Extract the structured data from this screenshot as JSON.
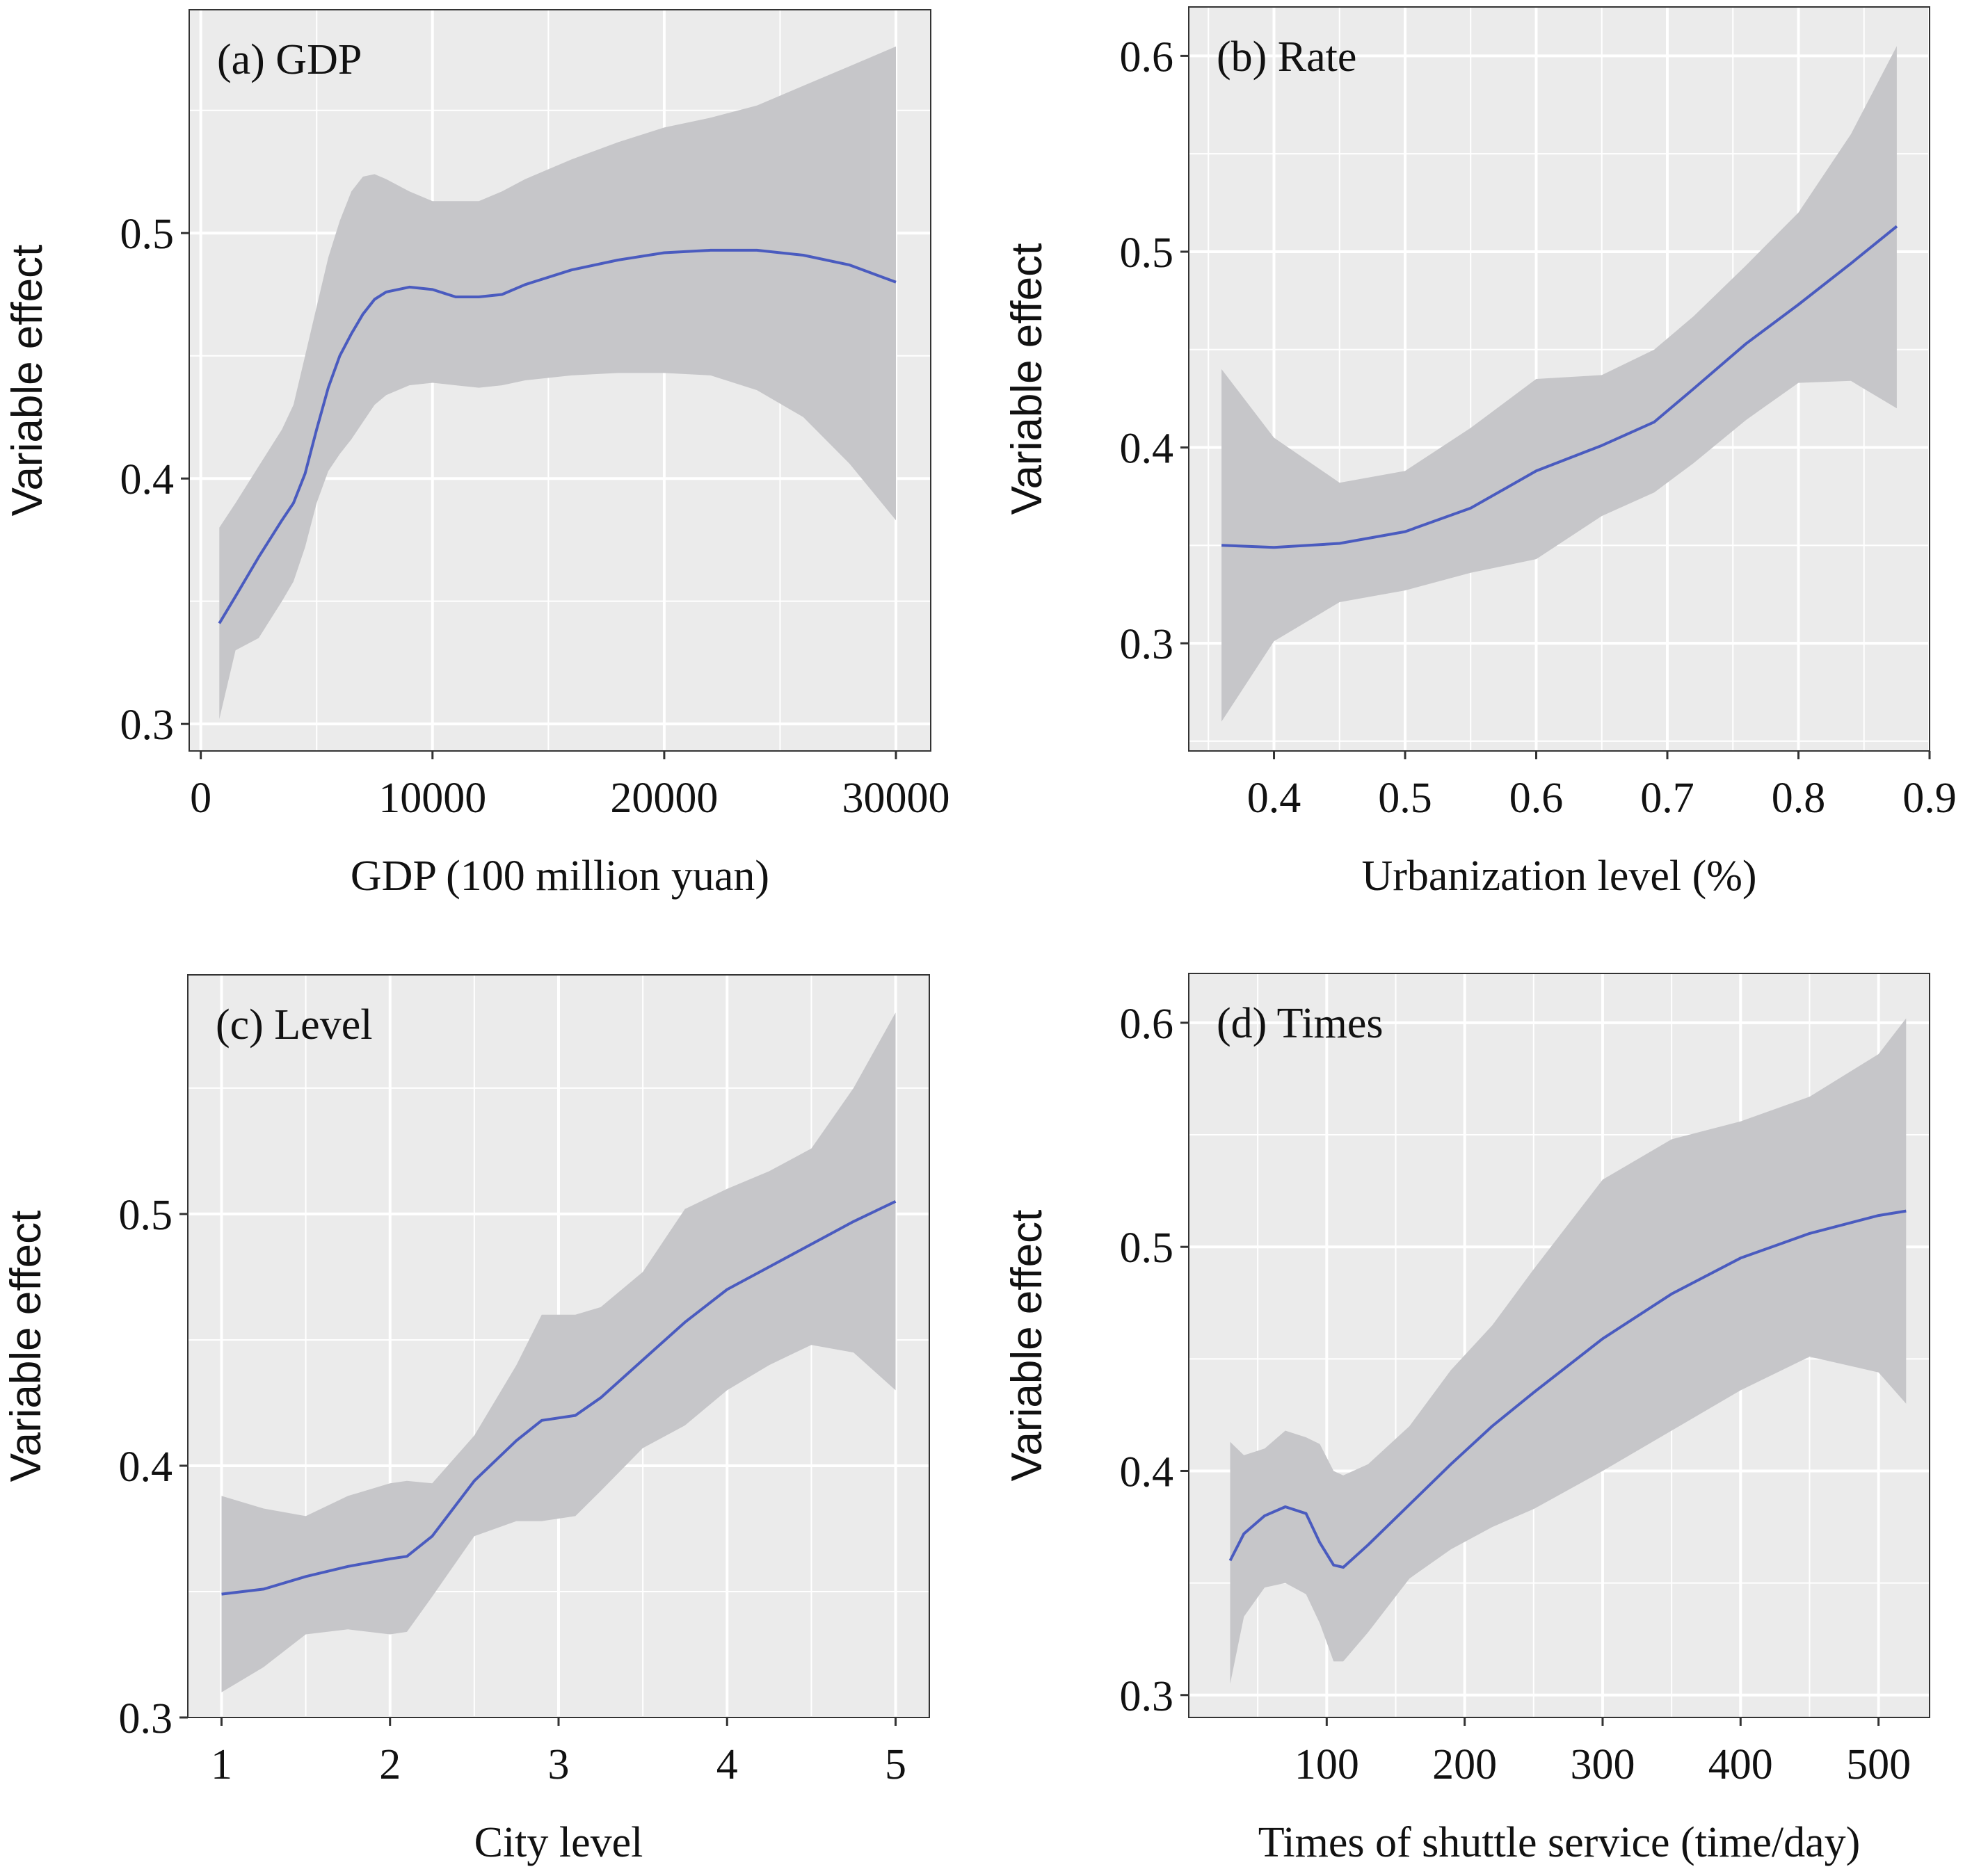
{
  "chart_data": [
    {
      "type": "line",
      "title": "(a) GDP",
      "xlabel": "GDP (100 million yuan)",
      "ylabel": "Variable effect",
      "xlim": [
        -500,
        31500
      ],
      "ylim": [
        0.289,
        0.591
      ],
      "xticks": [
        0,
        10000,
        20000,
        30000
      ],
      "xtick_labels": [
        "0",
        "10000",
        "20000",
        "30000"
      ],
      "yticks": [
        0.3,
        0.4,
        0.5
      ],
      "ytick_labels": [
        "0.3",
        "0.4",
        "0.5"
      ],
      "grid": true,
      "series": [
        {
          "x": [
            800,
            1500,
            2500,
            3500,
            4000,
            4500,
            5000,
            5500,
            6000,
            6500,
            7000,
            7500,
            8000,
            9000,
            10000,
            11000,
            12000,
            13000,
            14000,
            16000,
            18000,
            20000,
            22000,
            24000,
            26000,
            28000,
            30000
          ],
          "y": [
            0.341,
            0.352,
            0.368,
            0.383,
            0.39,
            0.402,
            0.42,
            0.437,
            0.45,
            0.459,
            0.467,
            0.473,
            0.476,
            0.478,
            0.477,
            0.474,
            0.474,
            0.475,
            0.479,
            0.485,
            0.489,
            0.492,
            0.493,
            0.493,
            0.491,
            0.487,
            0.48
          ],
          "ci_upper": [
            0.38,
            0.39,
            0.405,
            0.42,
            0.43,
            0.45,
            0.47,
            0.49,
            0.505,
            0.517,
            0.523,
            0.524,
            0.522,
            0.517,
            0.513,
            0.513,
            0.513,
            0.517,
            0.522,
            0.53,
            0.537,
            0.543,
            0.547,
            0.552,
            0.56,
            0.568,
            0.576
          ],
          "ci_lower": [
            0.302,
            0.33,
            0.335,
            0.35,
            0.358,
            0.372,
            0.39,
            0.403,
            0.41,
            0.416,
            0.423,
            0.43,
            0.434,
            0.438,
            0.439,
            0.438,
            0.437,
            0.438,
            0.44,
            0.442,
            0.443,
            0.443,
            0.442,
            0.436,
            0.425,
            0.406,
            0.383
          ]
        }
      ]
    },
    {
      "type": "line",
      "title": "(b) Rate",
      "xlabel": "Urbanization level (%)",
      "ylabel": "Variable effect",
      "xlim": [
        0.335,
        0.9
      ],
      "ylim": [
        0.245,
        0.625
      ],
      "xticks": [
        0.4,
        0.5,
        0.6,
        0.7,
        0.8,
        0.9
      ],
      "xtick_labels": [
        "0.4",
        "0.5",
        "0.6",
        "0.7",
        "0.8",
        "0.9"
      ],
      "yticks": [
        0.3,
        0.4,
        0.5,
        0.6
      ],
      "ytick_labels": [
        "0.3",
        "0.4",
        "0.5",
        "0.6"
      ],
      "grid": true,
      "series": [
        {
          "x": [
            0.36,
            0.4,
            0.45,
            0.5,
            0.55,
            0.6,
            0.65,
            0.69,
            0.72,
            0.76,
            0.8,
            0.84,
            0.875
          ],
          "y": [
            0.35,
            0.349,
            0.351,
            0.357,
            0.369,
            0.388,
            0.401,
            0.413,
            0.43,
            0.453,
            0.473,
            0.494,
            0.513
          ],
          "ci_upper": [
            0.44,
            0.405,
            0.382,
            0.388,
            0.41,
            0.435,
            0.437,
            0.45,
            0.467,
            0.493,
            0.52,
            0.56,
            0.605
          ],
          "ci_lower": [
            0.26,
            0.301,
            0.321,
            0.327,
            0.336,
            0.343,
            0.365,
            0.377,
            0.392,
            0.414,
            0.433,
            0.434,
            0.42
          ]
        }
      ]
    },
    {
      "type": "line",
      "title": "(c) Level",
      "xlabel": "City level",
      "ylabel": "Variable effect",
      "xlim": [
        0.8,
        5.2
      ],
      "ylim": [
        0.3,
        0.595
      ],
      "xticks": [
        1,
        2,
        3,
        4,
        5
      ],
      "xtick_labels": [
        "1",
        "2",
        "3",
        "4",
        "5"
      ],
      "yticks": [
        0.3,
        0.4,
        0.5
      ],
      "ytick_labels": [
        "0.3",
        "0.4",
        "0.5"
      ],
      "grid": true,
      "series": [
        {
          "x": [
            1,
            1.25,
            1.5,
            1.75,
            2,
            2.1,
            2.25,
            2.5,
            2.75,
            2.9,
            3.1,
            3.25,
            3.5,
            3.75,
            4,
            4.25,
            4.5,
            4.75,
            5
          ],
          "y": [
            0.349,
            0.351,
            0.356,
            0.36,
            0.363,
            0.364,
            0.372,
            0.394,
            0.41,
            0.418,
            0.42,
            0.427,
            0.442,
            0.457,
            0.47,
            0.479,
            0.488,
            0.497,
            0.505
          ],
          "ci_upper": [
            0.388,
            0.383,
            0.38,
            0.388,
            0.393,
            0.394,
            0.393,
            0.412,
            0.44,
            0.46,
            0.46,
            0.463,
            0.477,
            0.502,
            0.51,
            0.517,
            0.526,
            0.55,
            0.58
          ],
          "ci_lower": [
            0.31,
            0.32,
            0.333,
            0.335,
            0.333,
            0.334,
            0.348,
            0.372,
            0.378,
            0.378,
            0.38,
            0.39,
            0.407,
            0.416,
            0.43,
            0.44,
            0.448,
            0.445,
            0.43
          ]
        }
      ]
    },
    {
      "type": "line",
      "title": "(d) Times",
      "xlabel": "Times of shuttle service (time/day)",
      "ylabel": "Variable effect",
      "xlim": [
        0,
        537
      ],
      "ylim": [
        0.29,
        0.622
      ],
      "xticks": [
        100,
        200,
        300,
        400,
        500
      ],
      "xtick_labels": [
        "100",
        "200",
        "300",
        "400",
        "500"
      ],
      "yticks": [
        0.3,
        0.4,
        0.5,
        0.6
      ],
      "ytick_labels": [
        "0.3",
        "0.4",
        "0.5",
        "0.6"
      ],
      "grid": true,
      "series": [
        {
          "x": [
            30,
            40,
            55,
            70,
            85,
            95,
            105,
            112,
            130,
            160,
            190,
            220,
            250,
            300,
            350,
            400,
            450,
            500,
            520
          ],
          "y": [
            0.36,
            0.372,
            0.38,
            0.384,
            0.381,
            0.368,
            0.358,
            0.357,
            0.367,
            0.385,
            0.403,
            0.42,
            0.435,
            0.459,
            0.479,
            0.495,
            0.506,
            0.514,
            0.516
          ],
          "ci_upper": [
            0.413,
            0.407,
            0.41,
            0.418,
            0.415,
            0.412,
            0.4,
            0.398,
            0.403,
            0.42,
            0.445,
            0.465,
            0.49,
            0.53,
            0.548,
            0.556,
            0.567,
            0.586,
            0.602
          ],
          "ci_lower": [
            0.305,
            0.335,
            0.348,
            0.35,
            0.345,
            0.332,
            0.315,
            0.315,
            0.328,
            0.352,
            0.365,
            0.375,
            0.383,
            0.4,
            0.418,
            0.436,
            0.451,
            0.444,
            0.43
          ]
        }
      ]
    }
  ],
  "style": {
    "panel_background": "#ebebeb",
    "grid_color": "#ffffff",
    "ribbon_color": "#c6c6c9",
    "line_color": "#4a5bbf",
    "text_color": "#111111"
  }
}
